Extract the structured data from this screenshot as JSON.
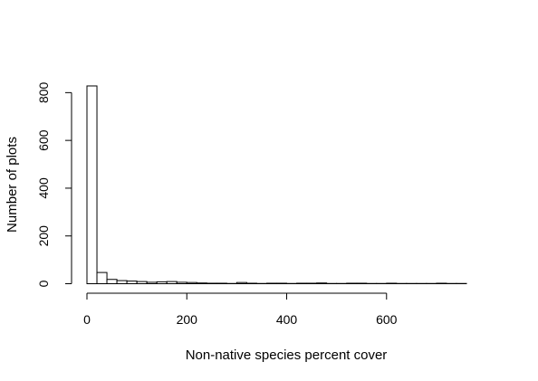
{
  "chart_data": {
    "type": "histogram",
    "title": "",
    "xlabel": "Non-native species percent cover",
    "ylabel": "Number of plots",
    "bin_width": 20,
    "bins_start": 0,
    "counts": [
      828,
      47,
      18,
      13,
      11,
      9,
      6,
      8,
      9,
      6,
      5,
      3,
      2,
      2,
      1,
      5,
      2,
      1,
      2,
      2,
      1,
      2,
      2,
      3,
      1,
      1,
      2,
      2,
      1,
      1,
      2,
      1,
      1,
      1,
      1,
      2,
      1,
      1
    ],
    "x_ticks": [
      0,
      200,
      400,
      600
    ],
    "y_ticks": [
      0,
      200,
      400,
      600,
      800
    ],
    "xlim": [
      0,
      760
    ],
    "ylim": [
      0,
      850
    ],
    "grid": false,
    "legend": "none"
  }
}
